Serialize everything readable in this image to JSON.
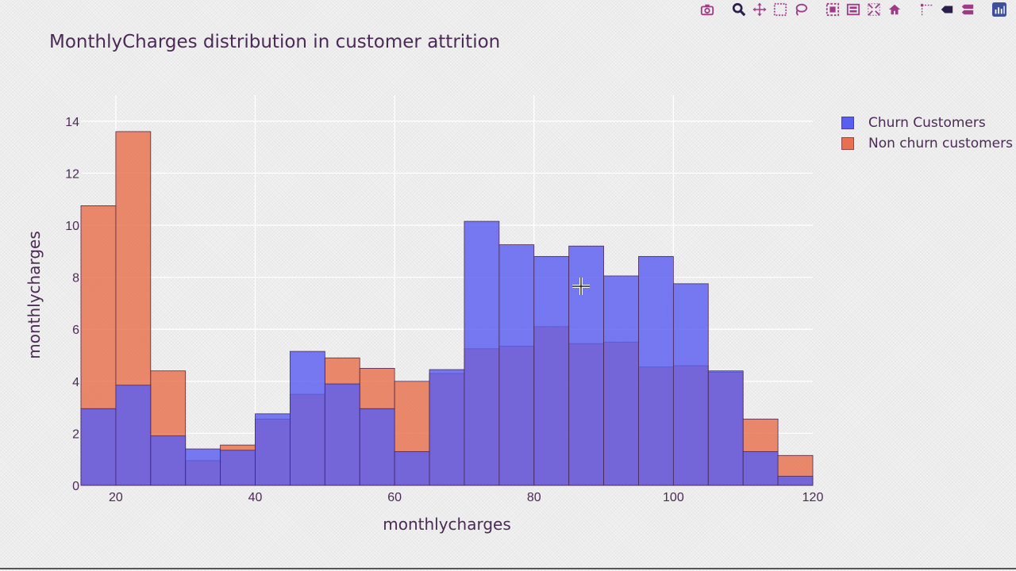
{
  "modebar": {
    "buttons": [
      {
        "name": "camera-icon"
      },
      {
        "name": "zoom-icon"
      },
      {
        "name": "pan-icon"
      },
      {
        "name": "box-select-icon"
      },
      {
        "name": "lasso-icon"
      },
      {
        "name": "zoom-in-icon"
      },
      {
        "name": "zoom-out-icon"
      },
      {
        "name": "autoscale-icon"
      },
      {
        "name": "home-icon"
      },
      {
        "name": "spike-lines-icon"
      },
      {
        "name": "hover-closest-icon"
      },
      {
        "name": "hover-compare-icon"
      },
      {
        "name": "plotly-logo-icon"
      }
    ]
  },
  "chart_data": {
    "type": "bar",
    "title": "MonthlyCharges distribution in customer attrition",
    "xlabel": "monthlycharges",
    "ylabel": "monthlycharges",
    "barmode": "overlay",
    "bin_edges": [
      15,
      20,
      25,
      30,
      35,
      40,
      45,
      50,
      55,
      60,
      65,
      70,
      75,
      80,
      85,
      90,
      95,
      100,
      105,
      110,
      115,
      120
    ],
    "xlim": [
      15,
      120
    ],
    "ylim": [
      0,
      15
    ],
    "x_ticks": [
      20,
      40,
      60,
      80,
      100,
      120
    ],
    "y_ticks": [
      0,
      2,
      4,
      6,
      8,
      10,
      12,
      14
    ],
    "grid": true,
    "legend_position": "top-right",
    "series": [
      {
        "name": "Churn Customers",
        "color": "#5a5ef0",
        "values": [
          2.95,
          3.85,
          1.9,
          1.4,
          1.35,
          2.75,
          5.15,
          3.9,
          2.95,
          1.3,
          4.45,
          10.15,
          9.25,
          8.8,
          9.2,
          8.05,
          8.8,
          7.75,
          4.4,
          1.3,
          0.35
        ]
      },
      {
        "name": "Non churn customers",
        "color": "#e8704e",
        "values": [
          10.75,
          13.6,
          4.4,
          0.95,
          1.55,
          2.55,
          3.5,
          4.9,
          4.5,
          4.0,
          4.3,
          5.25,
          5.35,
          6.1,
          5.45,
          5.5,
          4.55,
          4.6,
          4.35,
          2.55,
          1.15
        ]
      }
    ]
  }
}
